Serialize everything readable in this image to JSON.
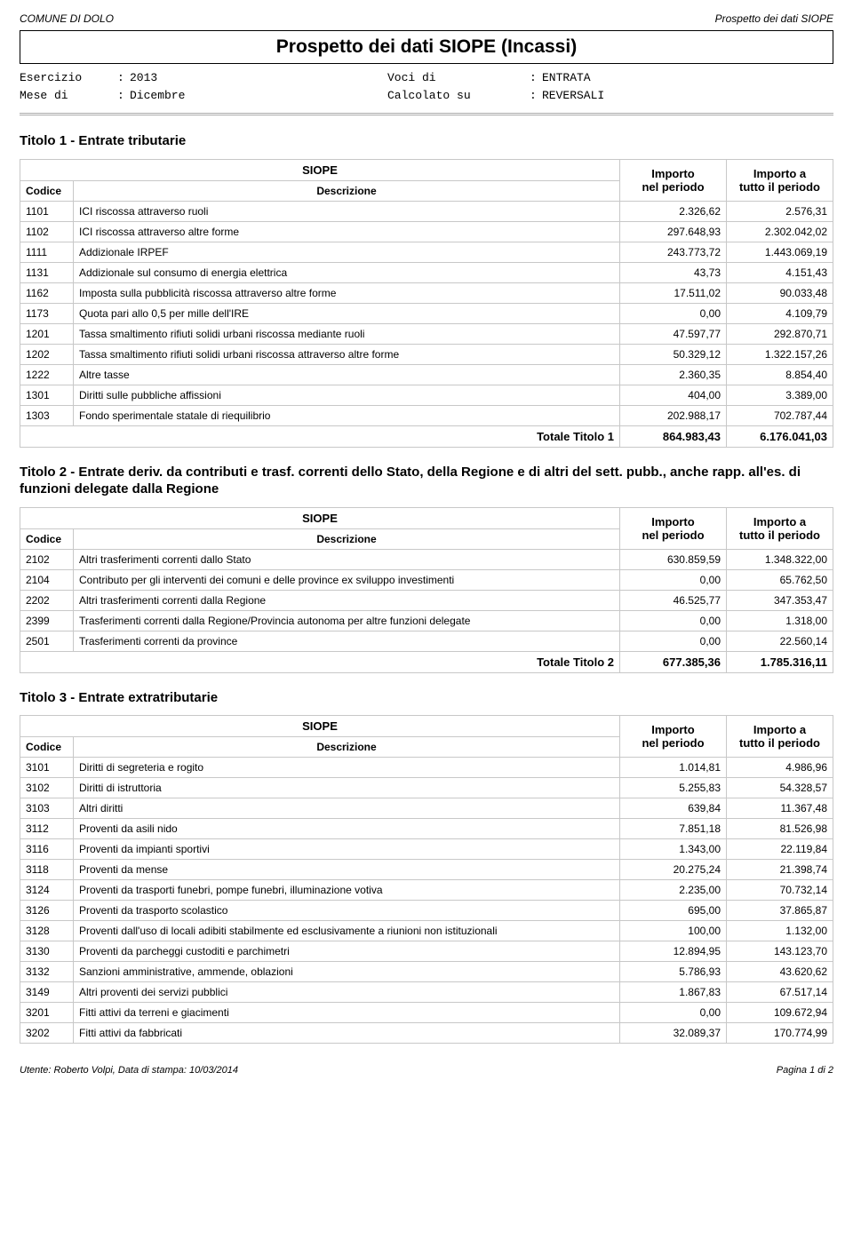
{
  "header": {
    "left": "COMUNE DI DOLO",
    "right": "Prospetto dei dati SIOPE"
  },
  "title": "Prospetto dei dati SIOPE (Incassi)",
  "meta": {
    "esercizio_label": "Esercizio",
    "esercizio_val": "2013",
    "mese_label": "Mese di",
    "mese_val": "Dicembre",
    "voci_label": "Voci di",
    "voci_val": "ENTRATA",
    "calc_label": "Calcolato su",
    "calc_val": "REVERSALI"
  },
  "columns": {
    "siope": "SIOPE",
    "codice": "Codice",
    "descrizione": "Descrizione",
    "importo_periodo": "Importo\nnel periodo",
    "importo_tutto": "Importo a\ntutto il periodo"
  },
  "sections": [
    {
      "title": "Titolo 1 - Entrate tributarie",
      "total_label": "Totale Titolo 1",
      "total_periodo": "864.983,43",
      "total_tutto": "6.176.041,03",
      "rows": [
        {
          "c": "1101",
          "d": "ICI riscossa attraverso ruoli",
          "p": "2.326,62",
          "t": "2.576,31"
        },
        {
          "c": "1102",
          "d": "ICI riscossa attraverso altre forme",
          "p": "297.648,93",
          "t": "2.302.042,02"
        },
        {
          "c": "1111",
          "d": "Addizionale IRPEF",
          "p": "243.773,72",
          "t": "1.443.069,19"
        },
        {
          "c": "1131",
          "d": "Addizionale sul consumo di energia elettrica",
          "p": "43,73",
          "t": "4.151,43"
        },
        {
          "c": "1162",
          "d": "Imposta sulla pubblicità riscossa attraverso altre forme",
          "p": "17.511,02",
          "t": "90.033,48"
        },
        {
          "c": "1173",
          "d": "Quota pari allo 0,5 per mille dell'IRE",
          "p": "0,00",
          "t": "4.109,79"
        },
        {
          "c": "1201",
          "d": "Tassa smaltimento rifiuti solidi urbani riscossa mediante ruoli",
          "p": "47.597,77",
          "t": "292.870,71"
        },
        {
          "c": "1202",
          "d": "Tassa smaltimento rifiuti solidi urbani  riscossa attraverso altre forme",
          "p": "50.329,12",
          "t": "1.322.157,26"
        },
        {
          "c": "1222",
          "d": "Altre tasse",
          "p": "2.360,35",
          "t": "8.854,40"
        },
        {
          "c": "1301",
          "d": "Diritti sulle pubbliche affissioni",
          "p": "404,00",
          "t": "3.389,00"
        },
        {
          "c": "1303",
          "d": "Fondo sperimentale statale di riequilibrio",
          "p": "202.988,17",
          "t": "702.787,44"
        }
      ]
    },
    {
      "title": "Titolo 2 - Entrate deriv. da contributi e trasf. correnti dello Stato, della Regione e di altri del sett. pubb., anche rapp. all'es. di funzioni delegate dalla Regione",
      "total_label": "Totale Titolo 2",
      "total_periodo": "677.385,36",
      "total_tutto": "1.785.316,11",
      "rows": [
        {
          "c": "2102",
          "d": "Altri trasferimenti correnti dallo Stato",
          "p": "630.859,59",
          "t": "1.348.322,00"
        },
        {
          "c": "2104",
          "d": "Contributo per gli interventi dei comuni e delle province ex sviluppo investimenti",
          "p": "0,00",
          "t": "65.762,50"
        },
        {
          "c": "2202",
          "d": "Altri trasferimenti correnti dalla Regione",
          "p": "46.525,77",
          "t": "347.353,47"
        },
        {
          "c": "2399",
          "d": "Trasferimenti correnti dalla Regione/Provincia autonoma per altre funzioni delegate",
          "p": "0,00",
          "t": "1.318,00"
        },
        {
          "c": "2501",
          "d": "Trasferimenti correnti da province",
          "p": "0,00",
          "t": "22.560,14"
        }
      ]
    },
    {
      "title": "Titolo 3 - Entrate extratributarie",
      "total_label": "",
      "total_periodo": "",
      "total_tutto": "",
      "rows": [
        {
          "c": "3101",
          "d": "Diritti di segreteria e rogito",
          "p": "1.014,81",
          "t": "4.986,96"
        },
        {
          "c": "3102",
          "d": "Diritti di istruttoria",
          "p": "5.255,83",
          "t": "54.328,57"
        },
        {
          "c": "3103",
          "d": "Altri diritti",
          "p": "639,84",
          "t": "11.367,48"
        },
        {
          "c": "3112",
          "d": "Proventi da asili nido",
          "p": "7.851,18",
          "t": "81.526,98"
        },
        {
          "c": "3116",
          "d": "Proventi da impianti sportivi",
          "p": "1.343,00",
          "t": "22.119,84"
        },
        {
          "c": "3118",
          "d": "Proventi da mense",
          "p": "20.275,24",
          "t": "21.398,74"
        },
        {
          "c": "3124",
          "d": "Proventi da trasporti funebri, pompe funebri, illuminazione votiva",
          "p": "2.235,00",
          "t": "70.732,14"
        },
        {
          "c": "3126",
          "d": "Proventi da trasporto scolastico",
          "p": "695,00",
          "t": "37.865,87"
        },
        {
          "c": "3128",
          "d": "Proventi dall'uso di locali adibiti stabilmente ed esclusivamente a riunioni non istituzionali",
          "p": "100,00",
          "t": "1.132,00"
        },
        {
          "c": "3130",
          "d": "Proventi da parcheggi custoditi e parchimetri",
          "p": "12.894,95",
          "t": "143.123,70"
        },
        {
          "c": "3132",
          "d": "Sanzioni amministrative, ammende, oblazioni",
          "p": "5.786,93",
          "t": "43.620,62"
        },
        {
          "c": "3149",
          "d": "Altri proventi dei servizi pubblici",
          "p": "1.867,83",
          "t": "67.517,14"
        },
        {
          "c": "3201",
          "d": "Fitti attivi da terreni e giacimenti",
          "p": "0,00",
          "t": "109.672,94"
        },
        {
          "c": "3202",
          "d": "Fitti attivi da fabbricati",
          "p": "32.089,37",
          "t": "170.774,99"
        }
      ]
    }
  ],
  "footer": {
    "left": "Utente: Roberto Volpi, Data di stampa: 10/03/2014",
    "right": "Pagina 1 di 2"
  }
}
